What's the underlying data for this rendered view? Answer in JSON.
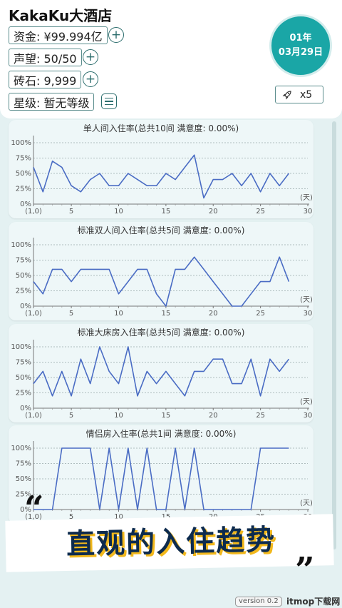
{
  "header": {
    "hotel_name": "KakaKu大酒店",
    "funds": "资金: ¥99.994亿",
    "reputation": "声望: 50/50",
    "gems": "砖石: 9,999",
    "rating": "星级: 暂无等级",
    "date_month": "01年",
    "date_day": "03月29日",
    "speed": "x5",
    "icons": {
      "plus": "plus-circle-icon",
      "list": "list-icon",
      "rocket": "rocket-icon"
    }
  },
  "axis": {
    "y_ticks": [
      "100%",
      "75%",
      "50%",
      "25%",
      "0%"
    ],
    "x_ticks": [
      "(1,0)",
      "5",
      "10",
      "15",
      "20",
      "25",
      "30"
    ],
    "x_unit": "(天)"
  },
  "colors": {
    "line": "#4a6cc4",
    "accent": "#1aa6a6",
    "banner_shadow": "#f2b81c"
  },
  "chart_data": [
    {
      "type": "line",
      "title": "单人间入住率(总共10间 满意度: 0.00%)",
      "x": [
        1,
        2,
        3,
        4,
        5,
        6,
        7,
        8,
        9,
        10,
        11,
        12,
        13,
        14,
        15,
        16,
        17,
        18,
        19,
        20,
        21,
        22,
        23,
        24,
        25,
        26,
        27,
        28
      ],
      "series": [
        {
          "values": [
            60,
            20,
            70,
            60,
            30,
            20,
            40,
            50,
            30,
            30,
            50,
            40,
            30,
            30,
            50,
            40,
            60,
            80,
            10,
            40,
            40,
            50,
            30,
            50,
            20,
            50,
            30,
            50
          ]
        }
      ],
      "xlim": [
        1,
        30
      ],
      "ylim": [
        0,
        100
      ]
    },
    {
      "type": "line",
      "title": "标准双人间入住率(总共5间 满意度: 0.00%)",
      "x": [
        1,
        2,
        3,
        4,
        5,
        6,
        7,
        8,
        9,
        10,
        11,
        12,
        13,
        14,
        15,
        16,
        17,
        18,
        19,
        20,
        21,
        22,
        23,
        24,
        25,
        26,
        27,
        28
      ],
      "series": [
        {
          "values": [
            40,
            20,
            60,
            60,
            40,
            60,
            60,
            60,
            60,
            20,
            40,
            60,
            60,
            20,
            0,
            60,
            60,
            80,
            60,
            40,
            20,
            0,
            0,
            20,
            40,
            40,
            80,
            40
          ]
        }
      ],
      "xlim": [
        1,
        30
      ],
      "ylim": [
        0,
        100
      ]
    },
    {
      "type": "line",
      "title": "标准大床房入住率(总共5间 满意度: 0.00%)",
      "x": [
        1,
        2,
        3,
        4,
        5,
        6,
        7,
        8,
        9,
        10,
        11,
        12,
        13,
        14,
        15,
        16,
        17,
        18,
        19,
        20,
        21,
        22,
        23,
        24,
        25,
        26,
        27,
        28
      ],
      "series": [
        {
          "values": [
            40,
            60,
            20,
            60,
            20,
            80,
            40,
            100,
            60,
            40,
            100,
            20,
            60,
            40,
            60,
            40,
            20,
            60,
            60,
            80,
            80,
            40,
            40,
            80,
            20,
            80,
            60,
            80
          ]
        }
      ],
      "xlim": [
        1,
        30
      ],
      "ylim": [
        0,
        100
      ]
    },
    {
      "type": "line",
      "title": "情侣房入住率(总共1间 满意度: 0.00%)",
      "x": [
        1,
        2,
        3,
        4,
        5,
        6,
        7,
        8,
        9,
        10,
        11,
        12,
        13,
        14,
        15,
        16,
        17,
        18,
        19,
        20,
        21,
        22,
        23,
        24,
        25,
        26,
        27,
        28
      ],
      "series": [
        {
          "values": [
            0,
            0,
            0,
            100,
            100,
            100,
            100,
            0,
            100,
            0,
            100,
            0,
            100,
            0,
            0,
            100,
            0,
            100,
            0,
            0,
            0,
            0,
            0,
            0,
            100,
            100,
            100,
            100
          ]
        }
      ],
      "xlim": [
        1,
        30
      ],
      "ylim": [
        0,
        100
      ]
    }
  ],
  "banner": {
    "text": "直观的入住趋势",
    "quote_open": "“",
    "quote_close": "”"
  },
  "footer": {
    "version": "version 0.2",
    "watermark": "itmop下载网"
  }
}
